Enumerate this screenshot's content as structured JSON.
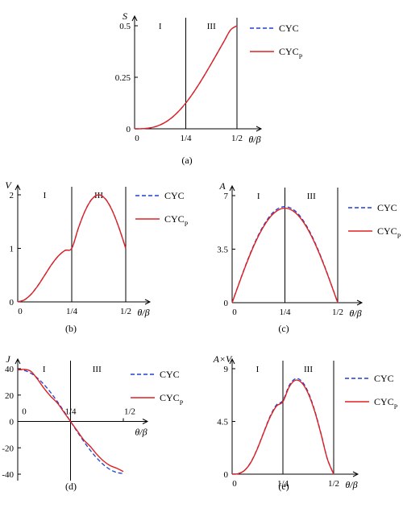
{
  "chart_data": [
    {
      "id": "a",
      "type": "line",
      "caption": "(a)",
      "ylabel": "S",
      "xlabel": "θ/β",
      "xlim": [
        0,
        0.5
      ],
      "ylim": [
        0,
        0.5
      ],
      "xticks": [
        0,
        0.25,
        0.5
      ],
      "xtick_labels": [
        "0",
        "1/4",
        "1/2"
      ],
      "yticks": [
        0,
        0.25,
        0.5
      ],
      "ytick_labels": [
        "0",
        "0.25",
        "0.5"
      ],
      "region_lines": [
        0.25,
        0.5
      ],
      "regions": [
        {
          "label": "I",
          "x": 0.125
        },
        {
          "label": "III",
          "x": 0.375
        }
      ],
      "series": [
        {
          "name": "CYC",
          "style": "dashed",
          "color": "#1f3fd6",
          "x": [
            0,
            0.03125,
            0.0625,
            0.09375,
            0.125,
            0.15625,
            0.1875,
            0.21875,
            0.25,
            0.28125,
            0.3125,
            0.34375,
            0.375,
            0.40625,
            0.4375,
            0.46875,
            0.5
          ],
          "y": [
            0,
            0.0003,
            0.0025,
            0.0083,
            0.0189,
            0.0356,
            0.0588,
            0.0888,
            0.125,
            0.167,
            0.2137,
            0.264,
            0.3169,
            0.3711,
            0.4256,
            0.4796,
            0.5
          ]
        },
        {
          "name": "CYC",
          "name_sub": "P",
          "style": "solid",
          "color": "#e02020",
          "x": [
            0,
            0.03125,
            0.0625,
            0.09375,
            0.125,
            0.15625,
            0.1875,
            0.21875,
            0.25,
            0.28125,
            0.3125,
            0.34375,
            0.375,
            0.40625,
            0.4375,
            0.46875,
            0.5
          ],
          "y": [
            0,
            0.0003,
            0.0025,
            0.0083,
            0.0189,
            0.0356,
            0.0588,
            0.0888,
            0.125,
            0.167,
            0.2137,
            0.264,
            0.3169,
            0.3711,
            0.4256,
            0.4796,
            0.5
          ]
        }
      ]
    },
    {
      "id": "b",
      "type": "line",
      "caption": "(b)",
      "ylabel": "V",
      "xlabel": "θ/β",
      "xlim": [
        0,
        0.5
      ],
      "ylim": [
        0,
        2
      ],
      "xticks": [
        0,
        0.25,
        0.5
      ],
      "xtick_labels": [
        "0",
        "1/4",
        "1/2"
      ],
      "yticks": [
        0,
        1,
        2
      ],
      "ytick_labels": [
        "0",
        "1",
        "2"
      ],
      "region_lines": [
        0.25,
        0.5
      ],
      "regions": [
        {
          "label": "I",
          "x": 0.125
        },
        {
          "label": "III",
          "x": 0.375
        }
      ],
      "series": [
        {
          "name": "CYC",
          "style": "dashed",
          "color": "#1f3fd6",
          "x": [
            0,
            0.03125,
            0.0625,
            0.09375,
            0.125,
            0.15625,
            0.1875,
            0.21875,
            0.25,
            0.28125,
            0.3125,
            0.34375,
            0.375,
            0.40625,
            0.4375,
            0.46875,
            0.5
          ],
          "y": [
            0,
            0.0384,
            0.1464,
            0.3087,
            0.5,
            0.6913,
            0.8536,
            0.9616,
            1.0,
            1.3827,
            1.7071,
            1.9239,
            2.0,
            1.9239,
            1.7071,
            1.3827,
            1.0
          ]
        },
        {
          "name": "CYC",
          "name_sub": "P",
          "style": "solid",
          "color": "#e02020",
          "x": [
            0,
            0.03125,
            0.0625,
            0.09375,
            0.125,
            0.15625,
            0.1875,
            0.21875,
            0.25,
            0.28125,
            0.3125,
            0.34375,
            0.375,
            0.40625,
            0.4375,
            0.46875,
            0.5
          ],
          "y": [
            0,
            0.04,
            0.145,
            0.305,
            0.5,
            0.695,
            0.855,
            0.96,
            1.0,
            1.385,
            1.705,
            1.92,
            2.0,
            1.92,
            1.705,
            1.385,
            1.0
          ]
        }
      ]
    },
    {
      "id": "c",
      "type": "line",
      "caption": "(c)",
      "ylabel": "A",
      "xlabel": "θ/β",
      "xlim": [
        0,
        0.5
      ],
      "ylim": [
        0,
        7
      ],
      "xticks": [
        0,
        0.25,
        0.5
      ],
      "xtick_labels": [
        "0",
        "1/4",
        "1/2"
      ],
      "yticks": [
        0,
        3.5,
        7
      ],
      "ytick_labels": [
        "0",
        "3.5",
        "7"
      ],
      "region_lines": [
        0.25,
        0.5
      ],
      "regions": [
        {
          "label": "I",
          "x": 0.125
        },
        {
          "label": "III",
          "x": 0.375
        }
      ],
      "series": [
        {
          "name": "CYC",
          "style": "dashed",
          "color": "#1f3fd6",
          "x": [
            0,
            0.03125,
            0.0625,
            0.09375,
            0.125,
            0.15625,
            0.1875,
            0.21875,
            0.25,
            0.28125,
            0.3125,
            0.34375,
            0.375,
            0.40625,
            0.4375,
            0.46875,
            0.5
          ],
          "y": [
            0,
            1.22,
            2.4,
            3.49,
            4.44,
            5.22,
            5.81,
            6.16,
            6.28,
            6.16,
            5.81,
            5.22,
            4.44,
            3.49,
            2.4,
            1.22,
            0
          ]
        },
        {
          "name": "CYC",
          "name_sub": "P",
          "style": "solid",
          "color": "#e02020",
          "x": [
            0,
            0.03125,
            0.0625,
            0.09375,
            0.125,
            0.15625,
            0.1875,
            0.21875,
            0.25,
            0.28125,
            0.3125,
            0.34375,
            0.375,
            0.40625,
            0.4375,
            0.46875,
            0.5
          ],
          "y": [
            0,
            1.2,
            2.36,
            3.43,
            4.37,
            5.14,
            5.71,
            6.06,
            6.18,
            6.06,
            5.71,
            5.14,
            4.37,
            3.43,
            2.36,
            1.2,
            0
          ]
        }
      ]
    },
    {
      "id": "d",
      "type": "line",
      "caption": "(d)",
      "ylabel": "J",
      "xlabel": "θ/β",
      "xlim": [
        0,
        0.5
      ],
      "ylim": [
        -40,
        40
      ],
      "xticks": [
        0,
        0.25,
        0.5
      ],
      "xtick_labels": [
        "0",
        "1/4",
        "1/2"
      ],
      "yticks": [
        -40,
        -20,
        0,
        20,
        40
      ],
      "ytick_labels": [
        "-40",
        "-20",
        "0",
        "20",
        "40"
      ],
      "region_lines": [
        0.25
      ],
      "regions": [
        {
          "label": "I",
          "x": 0.125
        },
        {
          "label": "III",
          "x": 0.375
        }
      ],
      "series": [
        {
          "name": "CYC",
          "style": "dashed",
          "color": "#1f3fd6",
          "x": [
            0,
            0.03125,
            0.0625,
            0.09375,
            0.125,
            0.15625,
            0.1875,
            0.21875,
            0.25,
            0.28125,
            0.3125,
            0.34375,
            0.375,
            0.40625,
            0.4375,
            0.46875,
            0.5
          ],
          "y": [
            39.5,
            38.7,
            36.5,
            32.8,
            27.9,
            21.9,
            15.1,
            7.7,
            0,
            -7.7,
            -15.1,
            -21.9,
            -27.9,
            -32.8,
            -36.5,
            -38.7,
            -39.5
          ]
        },
        {
          "name": "CYC",
          "name_sub": "P",
          "style": "solid",
          "color": "#e02020",
          "x": [
            0,
            0.03125,
            0.0625,
            0.09375,
            0.125,
            0.15625,
            0.1875,
            0.21875,
            0.25,
            0.28125,
            0.3125,
            0.34375,
            0.375,
            0.40625,
            0.4375,
            0.46875,
            0.5
          ],
          "y": [
            39,
            39.5,
            38,
            32,
            25,
            19,
            14,
            7,
            0,
            -7,
            -14,
            -19,
            -25,
            -30,
            -33.5,
            -35.5,
            -38
          ]
        }
      ]
    },
    {
      "id": "e",
      "type": "line",
      "caption": "(e)",
      "ylabel": "A×V",
      "xlabel": "θ/β",
      "xlim": [
        0,
        0.5
      ],
      "ylim": [
        0,
        9
      ],
      "xticks": [
        0,
        0.25,
        0.5
      ],
      "xtick_labels": [
        "0",
        "1/4",
        "1/2"
      ],
      "yticks": [
        0,
        4.5,
        9
      ],
      "ytick_labels": [
        "0",
        "4.5",
        "9"
      ],
      "region_lines": [
        0.25,
        0.5
      ],
      "regions": [
        {
          "label": "I",
          "x": 0.125
        },
        {
          "label": "III",
          "x": 0.375
        }
      ],
      "series": [
        {
          "name": "CYC",
          "style": "dashed",
          "color": "#1f3fd6",
          "x": [
            0,
            0.03125,
            0.0625,
            0.09375,
            0.125,
            0.15625,
            0.1875,
            0.21875,
            0.25,
            0.28125,
            0.3125,
            0.34375,
            0.375,
            0.40625,
            0.4375,
            0.46875,
            0.5
          ],
          "y": [
            0,
            0.05,
            0.35,
            1.08,
            2.22,
            3.61,
            4.96,
            5.92,
            6.28,
            7.58,
            8.15,
            7.91,
            6.98,
            5.45,
            3.48,
            1.32,
            0
          ]
        },
        {
          "name": "CYC",
          "name_sub": "P",
          "style": "solid",
          "color": "#e02020",
          "x": [
            0,
            0.03125,
            0.0625,
            0.09375,
            0.125,
            0.15625,
            0.1875,
            0.21875,
            0.25,
            0.28125,
            0.3125,
            0.34375,
            0.375,
            0.40625,
            0.4375,
            0.46875,
            0.5
          ],
          "y": [
            0,
            0.05,
            0.34,
            1.05,
            2.19,
            3.57,
            4.88,
            5.82,
            6.18,
            7.45,
            8.02,
            7.78,
            6.87,
            5.37,
            3.43,
            1.3,
            0
          ]
        }
      ]
    }
  ]
}
